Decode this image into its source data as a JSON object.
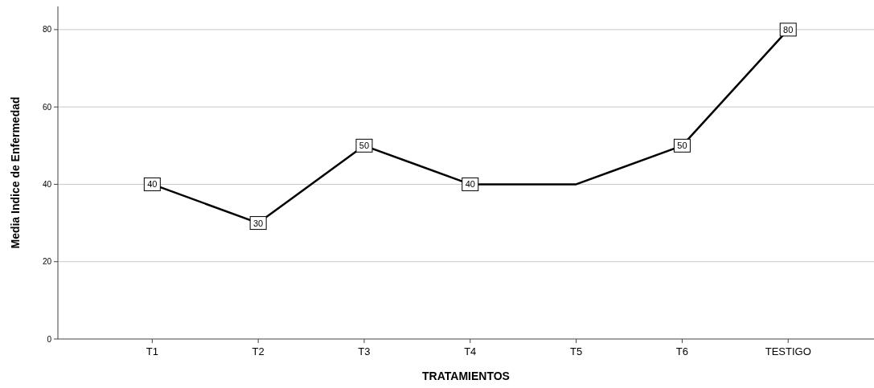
{
  "chart_data": {
    "type": "line",
    "xlabel": "TRATAMIENTOS",
    "ylabel": "Media Indice de Enfermedad",
    "categories": [
      "T1",
      "T2",
      "T3",
      "T4",
      "T5",
      "T6",
      "TESTIGO"
    ],
    "series": [
      {
        "color": "#000000",
        "values": [
          40,
          30,
          50,
          40,
          40,
          50,
          80
        ],
        "value_labels": [
          "40",
          "30",
          "50",
          "40",
          null,
          "50",
          "80"
        ]
      }
    ],
    "ylim": [
      0,
      86
    ],
    "yticks": [
      0,
      20,
      40,
      60,
      80
    ],
    "grid": "y",
    "marker": "square",
    "line_style": "solid"
  }
}
